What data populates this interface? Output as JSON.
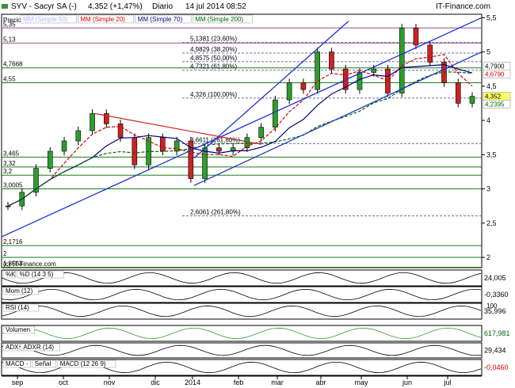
{
  "header": {
    "ticker_name": "SYV - Sacyr SA (-)",
    "quote": "4,352 (+1,47%)",
    "period": "Diario",
    "date": "14 jul 2014 08:52",
    "site": "IT-Finance.com"
  },
  "main_panel": {
    "price_label": "Precio",
    "legend": [
      {
        "label": "MM (Simple 50)",
        "color": "#b0b0ff"
      },
      {
        "label": "MM (Simple 20)",
        "color": "#d00000"
      },
      {
        "label": "MM (Simple 70)",
        "color": "#000080"
      },
      {
        "label": "MM (Simple 200)",
        "color": "#006600"
      }
    ],
    "watermark": "(c) IT-Finance.com",
    "y_ticks": [
      "5,5",
      "5",
      "4,5",
      "4",
      "3,5",
      "3",
      "2,5",
      "2"
    ],
    "horizontal_levels": [
      {
        "label": "5,35",
        "value": 5.35
      },
      {
        "label": "5,13",
        "value": 5.13
      },
      {
        "label": "4,7668",
        "value": 4.7668
      },
      {
        "label": "4,55",
        "value": 4.55
      },
      {
        "label": "3,465",
        "value": 3.465
      },
      {
        "label": "3,32",
        "value": 3.32
      },
      {
        "label": "3,2",
        "value": 3.2
      },
      {
        "label": "3,0005",
        "value": 3.0005
      },
      {
        "label": "2,1716",
        "value": 2.1716
      },
      {
        "label": "2",
        "value": 2.0
      },
      {
        "label": "1,8563",
        "value": 1.8563
      }
    ],
    "fibonacci": [
      {
        "label": "5,1381 (23,60%)",
        "value": 5.1381
      },
      {
        "label": "4,9829 (38,20%)",
        "value": 4.9829
      },
      {
        "label": "4,8575 (50,00%)",
        "value": 4.8575
      },
      {
        "label": "4,7321 (61,80%)",
        "value": 4.7321
      },
      {
        "label": "4,326 (100,00%)",
        "value": 4.326
      },
      {
        "label": "3,6611 (161,80%)",
        "value": 3.6611
      },
      {
        "label": "2,6061 (261,80%)",
        "value": 2.6061
      }
    ],
    "right_labels": [
      {
        "label": "4,7900",
        "value": 4.79,
        "color": "#ffffff",
        "bg": "#ffffff",
        "fg": "#000000"
      },
      {
        "label": "4,6790",
        "value": 4.679,
        "color": "#d00000",
        "bg": "#ffffff",
        "fg": "#d00000"
      },
      {
        "label": "4,352",
        "value": 4.352,
        "color": "#000000",
        "bg": "#ffff66",
        "fg": "#000000"
      },
      {
        "label": "4,2395",
        "value": 4.2395,
        "color": "#006600",
        "bg": "#ffffff",
        "fg": "#006600"
      }
    ]
  },
  "sub_panels": [
    {
      "name": "stochastic",
      "labels": [
        "%K",
        "%D (14 3 5)"
      ],
      "value": "24,005",
      "value_color": "#000000"
    },
    {
      "name": "momentum",
      "labels": [
        "Mom (12)"
      ],
      "value": "-0,3360",
      "value_color": "#000000"
    },
    {
      "name": "rsi",
      "labels": [
        "RSI (14)"
      ],
      "value": "35,996",
      "value_color": "#000000",
      "top_tick": "100"
    },
    {
      "name": "volume",
      "labels": [
        "Volumen"
      ],
      "value": "617,981",
      "value_color": "#006600"
    },
    {
      "name": "adx",
      "labels": [
        "ADX",
        "ADXR (14)"
      ],
      "value": "29,434",
      "value_color": "#000000"
    },
    {
      "name": "macd",
      "labels": [
        "MACD -",
        "Señal",
        "MACD (12 26 9)"
      ],
      "value": "-0,0460",
      "value_color": "#d00000"
    }
  ],
  "x_axis": {
    "labels": [
      "sep",
      "oct",
      "nov",
      "dic",
      "2014",
      "feb",
      "mar",
      "abr",
      "may",
      "jun",
      "jul"
    ]
  },
  "chart_data": {
    "type": "candlestick",
    "title": "SYV - Sacyr SA (-)",
    "period": "Diario",
    "last_close": 4.352,
    "change_pct": 1.47,
    "x": [
      "sep",
      "oct",
      "nov",
      "dic",
      "2014",
      "feb",
      "mar",
      "abr",
      "may",
      "jun",
      "jul"
    ],
    "ylim": [
      1.85,
      5.55
    ],
    "y_scale": "linear",
    "grid": false,
    "price_series": [
      {
        "month": "sep",
        "value": 2.75
      },
      {
        "month": "sep",
        "value": 2.95
      },
      {
        "month": "sep",
        "value": 3.3
      },
      {
        "month": "oct",
        "value": 3.55
      },
      {
        "month": "oct",
        "value": 3.7
      },
      {
        "month": "oct",
        "value": 3.85
      },
      {
        "month": "nov",
        "value": 4.1
      },
      {
        "month": "nov",
        "value": 3.95
      },
      {
        "month": "nov",
        "value": 3.75
      },
      {
        "month": "nov",
        "value": 3.35
      },
      {
        "month": "dic",
        "value": 3.75
      },
      {
        "month": "dic",
        "value": 3.55
      },
      {
        "month": "dic",
        "value": 3.7
      },
      {
        "month": "2014",
        "value": 3.15
      },
      {
        "month": "2014",
        "value": 3.6
      },
      {
        "month": "2014",
        "value": 3.55
      },
      {
        "month": "feb",
        "value": 3.6
      },
      {
        "month": "feb",
        "value": 3.75
      },
      {
        "month": "feb",
        "value": 3.9
      },
      {
        "month": "mar",
        "value": 4.3
      },
      {
        "month": "mar",
        "value": 4.55
      },
      {
        "month": "mar",
        "value": 4.45
      },
      {
        "month": "abr",
        "value": 5.0
      },
      {
        "month": "abr",
        "value": 4.75
      },
      {
        "month": "abr",
        "value": 4.45
      },
      {
        "month": "may",
        "value": 4.7
      },
      {
        "month": "may",
        "value": 4.75
      },
      {
        "month": "may",
        "value": 4.4
      },
      {
        "month": "jun",
        "value": 5.35
      },
      {
        "month": "jun",
        "value": 5.1
      },
      {
        "month": "jun",
        "value": 4.85
      },
      {
        "month": "jul",
        "value": 4.55
      },
      {
        "month": "jul",
        "value": 4.25
      },
      {
        "month": "jul",
        "value": 4.352
      }
    ]
  }
}
